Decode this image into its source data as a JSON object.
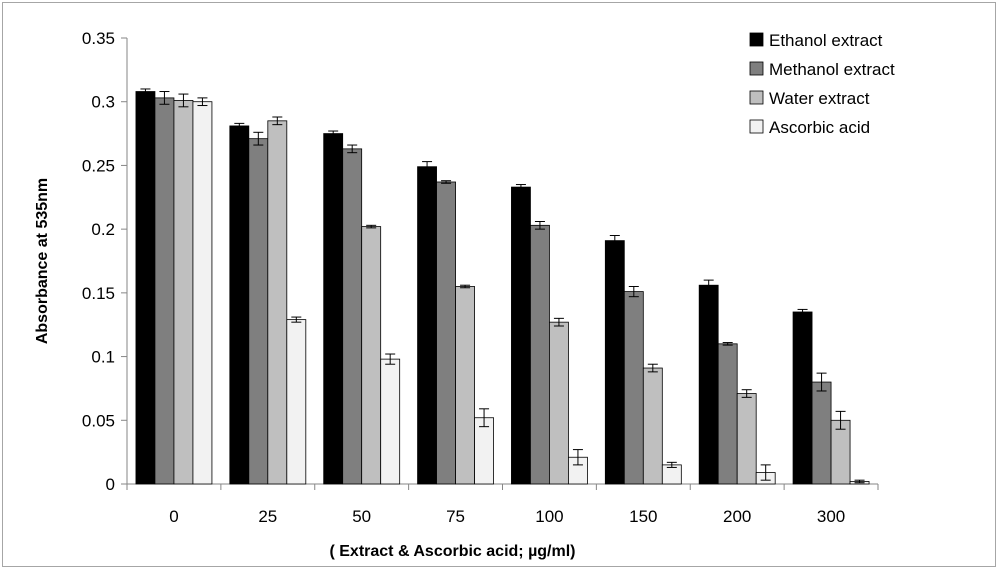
{
  "chart_data": {
    "type": "bar",
    "title": "",
    "xlabel": "( Extract & Ascorbic acid; µg/ml)",
    "ylabel": "Absorbance at 535nm",
    "categories": [
      "0",
      "25",
      "50",
      "75",
      "100",
      "150",
      "200",
      "300"
    ],
    "ylim": [
      0,
      0.35
    ],
    "yticks": [
      "0",
      "0.05",
      "0.1",
      "0.15",
      "0.2",
      "0.25",
      "0.3",
      "0.35"
    ],
    "legend_position": "top-right",
    "grid": false,
    "series": [
      {
        "name": "Ethanol extract",
        "color": "#000000",
        "values": [
          0.308,
          0.281,
          0.275,
          0.249,
          0.233,
          0.191,
          0.156,
          0.135
        ],
        "errors": [
          0.002,
          0.002,
          0.002,
          0.004,
          0.002,
          0.004,
          0.004,
          0.002
        ]
      },
      {
        "name": "Methanol extract",
        "color": "#7f7f7f",
        "values": [
          0.303,
          0.271,
          0.263,
          0.237,
          0.203,
          0.151,
          0.11,
          0.08
        ],
        "errors": [
          0.005,
          0.005,
          0.003,
          0.001,
          0.003,
          0.004,
          0.001,
          0.007
        ]
      },
      {
        "name": "Water extract",
        "color": "#bfbfbf",
        "values": [
          0.301,
          0.285,
          0.202,
          0.155,
          0.127,
          0.091,
          0.071,
          0.05
        ],
        "errors": [
          0.005,
          0.003,
          0.001,
          0.001,
          0.003,
          0.003,
          0.003,
          0.007
        ]
      },
      {
        "name": "Ascorbic acid",
        "color": "#f2f2f2",
        "values": [
          0.3,
          0.129,
          0.098,
          0.052,
          0.021,
          0.015,
          0.009,
          0.002
        ],
        "errors": [
          0.003,
          0.002,
          0.004,
          0.007,
          0.006,
          0.002,
          0.006,
          0.001
        ]
      }
    ]
  }
}
